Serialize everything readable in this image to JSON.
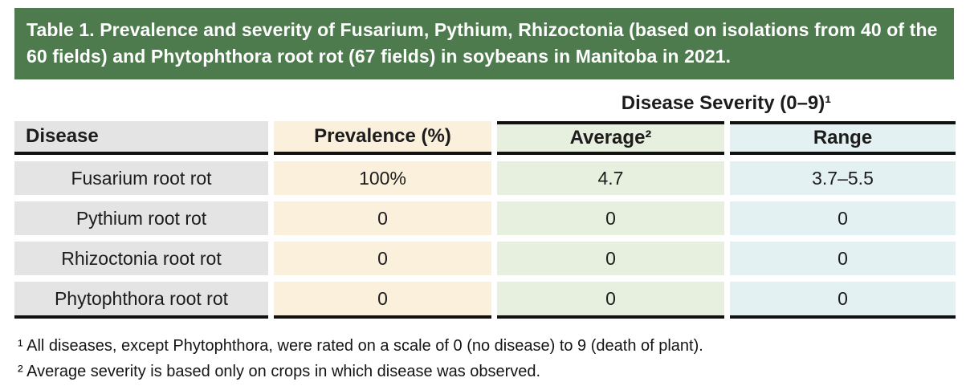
{
  "banner": {
    "text": "Table 1. Prevalence and severity of Fusarium, Pythium, Rhizoctonia (based on isolations from 40 of the 60 fields) and Phytophthora root rot (67 fields) in soybeans in Manitoba in 2021."
  },
  "table": {
    "spanner_header": "Disease Severity (0–9)¹",
    "columns": [
      "Disease",
      "Prevalence (%)",
      "Average²",
      "Range"
    ],
    "rows": [
      {
        "disease": "Fusarium root rot",
        "prevalence": "100%",
        "average": "4.7",
        "range": "3.7–5.5"
      },
      {
        "disease": "Pythium root rot",
        "prevalence": "0",
        "average": "0",
        "range": "0"
      },
      {
        "disease": "Rhizoctonia root rot",
        "prevalence": "0",
        "average": "0",
        "range": "0"
      },
      {
        "disease": "Phytophthora root rot",
        "prevalence": "0",
        "average": "0",
        "range": "0"
      }
    ]
  },
  "footnotes": [
    "¹ All diseases, except Phytophthora, were rated on a scale of 0 (no disease) to 9 (death of plant).",
    "² Average severity is based only on crops in which disease was observed."
  ],
  "colors": {
    "banner_green": "#4e7b4e",
    "banner_text": "#ffffff",
    "disease_column_bg": "#e3e4e3",
    "prevalence_column_bg": "#faf0db",
    "average_column_bg": "#e7f0df",
    "range_column_bg": "#e3f1f2",
    "border_black": "#111111"
  }
}
